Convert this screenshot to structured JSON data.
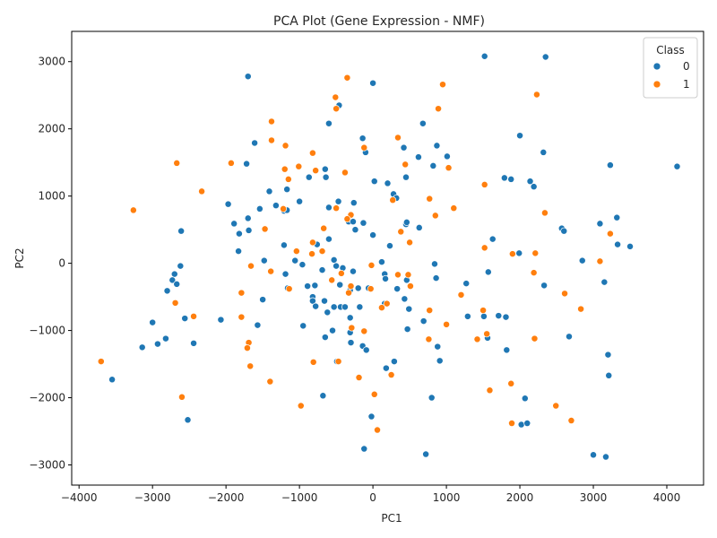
{
  "chart_data": {
    "type": "scatter",
    "title": "PCA Plot (Gene Expression - NMF)",
    "xlabel": "PC1",
    "ylabel": "PC2",
    "xlim": [
      -4100,
      4500
    ],
    "ylim": [
      -3300,
      3450
    ],
    "xticks": [
      -4000,
      -3000,
      -2000,
      -1000,
      0,
      1000,
      2000,
      3000,
      4000
    ],
    "yticks": [
      -3000,
      -2000,
      -1000,
      0,
      1000,
      2000,
      3000
    ],
    "grid": false,
    "legend": {
      "title": "Class",
      "position": "top-right"
    },
    "series": [
      {
        "name": "0",
        "color": "#1f77b4",
        "points": [
          [
            -1700,
            2780
          ],
          [
            -600,
            2080
          ],
          [
            -460,
            2350
          ],
          [
            0,
            2680
          ],
          [
            680,
            2080
          ],
          [
            1520,
            3080
          ],
          [
            2350,
            3070
          ],
          [
            2000,
            1900
          ],
          [
            2320,
            1650
          ],
          [
            3230,
            1460
          ],
          [
            4140,
            1440
          ],
          [
            -1610,
            1790
          ],
          [
            -1720,
            1480
          ],
          [
            -140,
            1860
          ],
          [
            -100,
            1650
          ],
          [
            420,
            1720
          ],
          [
            620,
            1580
          ],
          [
            870,
            1750
          ],
          [
            1010,
            1590
          ],
          [
            820,
            1450
          ],
          [
            1790,
            1270
          ],
          [
            1880,
            1250
          ],
          [
            2140,
            1220
          ],
          [
            2190,
            1140
          ],
          [
            -870,
            1280
          ],
          [
            -650,
            1400
          ],
          [
            -640,
            1280
          ],
          [
            -1170,
            1100
          ],
          [
            -1410,
            1070
          ],
          [
            -260,
            900
          ],
          [
            20,
            1220
          ],
          [
            200,
            1190
          ],
          [
            450,
            1280
          ],
          [
            280,
            1030
          ],
          [
            320,
            970
          ],
          [
            -1970,
            880
          ],
          [
            -1540,
            810
          ],
          [
            -1320,
            860
          ],
          [
            -1210,
            780
          ],
          [
            -1170,
            790
          ],
          [
            -1000,
            920
          ],
          [
            -600,
            830
          ],
          [
            -470,
            920
          ],
          [
            -1890,
            590
          ],
          [
            -1700,
            670
          ],
          [
            -1820,
            440
          ],
          [
            -1690,
            490
          ],
          [
            -330,
            620
          ],
          [
            -270,
            620
          ],
          [
            -130,
            600
          ],
          [
            -240,
            500
          ],
          [
            0,
            420
          ],
          [
            450,
            580
          ],
          [
            460,
            610
          ],
          [
            630,
            530
          ],
          [
            1630,
            360
          ],
          [
            2570,
            520
          ],
          [
            2600,
            480
          ],
          [
            3090,
            590
          ],
          [
            3320,
            680
          ],
          [
            -2610,
            480
          ],
          [
            -1210,
            270
          ],
          [
            -760,
            280
          ],
          [
            -600,
            360
          ],
          [
            -1830,
            180
          ],
          [
            -1480,
            40
          ],
          [
            -1060,
            40
          ],
          [
            -960,
            -20
          ],
          [
            -530,
            50
          ],
          [
            -500,
            -40
          ],
          [
            -410,
            -70
          ],
          [
            -270,
            -120
          ],
          [
            120,
            20
          ],
          [
            230,
            260
          ],
          [
            840,
            -10
          ],
          [
            1570,
            -130
          ],
          [
            1990,
            150
          ],
          [
            2850,
            40
          ],
          [
            3330,
            280
          ],
          [
            3500,
            250
          ],
          [
            -2620,
            -40
          ],
          [
            -2700,
            -160
          ],
          [
            -2800,
            -410
          ],
          [
            -1190,
            -160
          ],
          [
            -1160,
            -370
          ],
          [
            -890,
            -340
          ],
          [
            -790,
            -330
          ],
          [
            -690,
            -100
          ],
          [
            -450,
            -320
          ],
          [
            -310,
            -400
          ],
          [
            -200,
            -370
          ],
          [
            -60,
            -370
          ],
          [
            160,
            -160
          ],
          [
            170,
            -230
          ],
          [
            330,
            -380
          ],
          [
            430,
            -530
          ],
          [
            460,
            -250
          ],
          [
            860,
            -220
          ],
          [
            3150,
            -280
          ],
          [
            -2730,
            -250
          ],
          [
            -2670,
            -310
          ],
          [
            -1500,
            -540
          ],
          [
            -950,
            -930
          ],
          [
            -820,
            -500
          ],
          [
            -820,
            -560
          ],
          [
            -780,
            -640
          ],
          [
            -660,
            -560
          ],
          [
            -620,
            -730
          ],
          [
            -530,
            -650
          ],
          [
            -440,
            -650
          ],
          [
            -380,
            -650
          ],
          [
            -310,
            -810
          ],
          [
            -180,
            -650
          ],
          [
            160,
            -600
          ],
          [
            490,
            -680
          ],
          [
            690,
            -860
          ],
          [
            1270,
            -300
          ],
          [
            1290,
            -790
          ],
          [
            1510,
            -790
          ],
          [
            1710,
            -780
          ],
          [
            1810,
            -800
          ],
          [
            2330,
            -330
          ],
          [
            -3000,
            -880
          ],
          [
            -2560,
            -820
          ],
          [
            -2070,
            -840
          ],
          [
            -1570,
            -920
          ],
          [
            -650,
            -1100
          ],
          [
            -550,
            -1000
          ],
          [
            -310,
            -1030
          ],
          [
            -300,
            -1180
          ],
          [
            -140,
            -1230
          ],
          [
            -90,
            -1290
          ],
          [
            470,
            -980
          ],
          [
            880,
            -1240
          ],
          [
            910,
            -1450
          ],
          [
            1560,
            -1110
          ],
          [
            1820,
            -1290
          ],
          [
            2670,
            -1090
          ],
          [
            -2820,
            -1120
          ],
          [
            -2930,
            -1200
          ],
          [
            -3140,
            -1250
          ],
          [
            -2440,
            -1190
          ],
          [
            -490,
            -1460
          ],
          [
            180,
            -1560
          ],
          [
            290,
            -1460
          ],
          [
            800,
            -2000
          ],
          [
            3200,
            -1360
          ],
          [
            3210,
            -1670
          ],
          [
            -3550,
            -1730
          ],
          [
            -680,
            -1970
          ],
          [
            -120,
            -2760
          ],
          [
            -20,
            -2280
          ],
          [
            -2520,
            -2330
          ],
          [
            720,
            -2840
          ],
          [
            2070,
            -2010
          ],
          [
            2020,
            -2400
          ],
          [
            2100,
            -2380
          ],
          [
            3000,
            -2850
          ],
          [
            3170,
            -2880
          ]
        ]
      },
      {
        "name": "1",
        "color": "#ff7f0e",
        "points": [
          [
            -350,
            2760
          ],
          [
            950,
            2660
          ],
          [
            2230,
            2510
          ],
          [
            -510,
            2470
          ],
          [
            -500,
            2300
          ],
          [
            890,
            2300
          ],
          [
            -1380,
            2110
          ],
          [
            -1380,
            1830
          ],
          [
            -1190,
            1750
          ],
          [
            -820,
            1640
          ],
          [
            -120,
            1720
          ],
          [
            340,
            1870
          ],
          [
            -2670,
            1490
          ],
          [
            -1930,
            1490
          ],
          [
            -1200,
            1400
          ],
          [
            -1010,
            1440
          ],
          [
            -780,
            1380
          ],
          [
            -380,
            1350
          ],
          [
            440,
            1470
          ],
          [
            1030,
            1420
          ],
          [
            -1150,
            1250
          ],
          [
            1520,
            1170
          ],
          [
            -2330,
            1070
          ],
          [
            270,
            940
          ],
          [
            770,
            960
          ],
          [
            1100,
            820
          ],
          [
            -3260,
            790
          ],
          [
            -1220,
            810
          ],
          [
            -300,
            720
          ],
          [
            -500,
            820
          ],
          [
            -350,
            660
          ],
          [
            850,
            710
          ],
          [
            2340,
            750
          ],
          [
            -1470,
            510
          ],
          [
            -670,
            520
          ],
          [
            380,
            470
          ],
          [
            3230,
            440
          ],
          [
            -1040,
            180
          ],
          [
            -820,
            310
          ],
          [
            -830,
            140
          ],
          [
            -690,
            180
          ],
          [
            500,
            310
          ],
          [
            1520,
            230
          ],
          [
            1900,
            140
          ],
          [
            2210,
            150
          ],
          [
            3090,
            30
          ],
          [
            -1660,
            -40
          ],
          [
            -1390,
            -120
          ],
          [
            -1140,
            -380
          ],
          [
            -560,
            -250
          ],
          [
            -430,
            -150
          ],
          [
            -20,
            -30
          ],
          [
            340,
            -170
          ],
          [
            480,
            -170
          ],
          [
            510,
            -340
          ],
          [
            2190,
            -140
          ],
          [
            -1790,
            -440
          ],
          [
            -2690,
            -590
          ],
          [
            -300,
            -340
          ],
          [
            -330,
            -440
          ],
          [
            -30,
            -380
          ],
          [
            120,
            -660
          ],
          [
            190,
            -600
          ],
          [
            770,
            -700
          ],
          [
            1200,
            -470
          ],
          [
            1500,
            -700
          ],
          [
            2610,
            -450
          ],
          [
            2830,
            -680
          ],
          [
            -2440,
            -790
          ],
          [
            -1790,
            -800
          ],
          [
            -290,
            -960
          ],
          [
            -120,
            -1010
          ],
          [
            760,
            -1130
          ],
          [
            1000,
            -910
          ],
          [
            1420,
            -1130
          ],
          [
            1550,
            -1050
          ],
          [
            2200,
            -1120
          ],
          [
            -3700,
            -1460
          ],
          [
            -1690,
            -1180
          ],
          [
            -1710,
            -1260
          ],
          [
            -1670,
            -1530
          ],
          [
            -1400,
            -1760
          ],
          [
            -810,
            -1470
          ],
          [
            -470,
            -1460
          ],
          [
            -190,
            -1700
          ],
          [
            250,
            -1660
          ],
          [
            20,
            -1950
          ],
          [
            1590,
            -1890
          ],
          [
            1880,
            -1790
          ],
          [
            -2600,
            -1990
          ],
          [
            -980,
            -2120
          ],
          [
            60,
            -2480
          ],
          [
            1890,
            -2380
          ],
          [
            2490,
            -2120
          ],
          [
            2700,
            -2340
          ]
        ]
      }
    ]
  }
}
